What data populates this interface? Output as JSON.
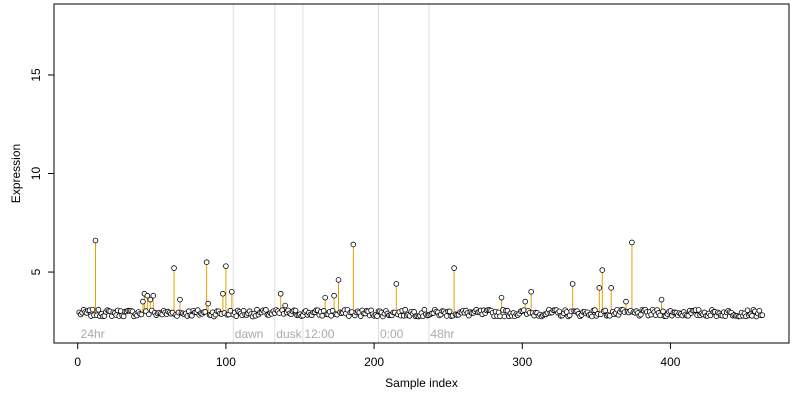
{
  "chart_data": {
    "type": "scatter",
    "title": "",
    "xlabel": "Sample index",
    "ylabel": "Expression",
    "xlim": [
      -16,
      480
    ],
    "ylim": [
      1.4,
      18.6
    ],
    "xticks": [
      0,
      100,
      200,
      300,
      400
    ],
    "yticks": [
      5,
      10,
      15
    ],
    "grid": false,
    "legend": "none",
    "colors": {
      "points_stroke": "#000000",
      "stems": "#E69F00",
      "sections": "#dddddd",
      "section_text": "#aaaaaa",
      "frame": "#000000"
    },
    "baseline": 2.9,
    "n_points": 462,
    "sections": [
      {
        "label": "24hr",
        "start": 2,
        "boundary": null
      },
      {
        "label": "dawn",
        "start": 106,
        "boundary": 105
      },
      {
        "label": "dusk",
        "start": 134,
        "boundary": 133
      },
      {
        "label": "12:00",
        "start": 153,
        "boundary": 152
      },
      {
        "label": "0:00",
        "start": 204,
        "boundary": 203
      },
      {
        "label": "48hr",
        "start": 238,
        "boundary": 237
      }
    ],
    "highlighted": [
      {
        "x": 12,
        "y": 6.6
      },
      {
        "x": 44,
        "y": 3.5
      },
      {
        "x": 45,
        "y": 3.9
      },
      {
        "x": 47,
        "y": 3.8
      },
      {
        "x": 49,
        "y": 3.6
      },
      {
        "x": 51,
        "y": 3.8
      },
      {
        "x": 65,
        "y": 5.2
      },
      {
        "x": 69,
        "y": 3.6
      },
      {
        "x": 87,
        "y": 5.5
      },
      {
        "x": 88,
        "y": 3.4
      },
      {
        "x": 98,
        "y": 3.9
      },
      {
        "x": 100,
        "y": 5.3
      },
      {
        "x": 104,
        "y": 4.0
      },
      {
        "x": 137,
        "y": 3.9
      },
      {
        "x": 140,
        "y": 3.3
      },
      {
        "x": 167,
        "y": 3.7
      },
      {
        "x": 173,
        "y": 3.8
      },
      {
        "x": 176,
        "y": 4.6
      },
      {
        "x": 186,
        "y": 6.4
      },
      {
        "x": 215,
        "y": 4.4
      },
      {
        "x": 254,
        "y": 5.2
      },
      {
        "x": 286,
        "y": 3.7
      },
      {
        "x": 302,
        "y": 3.5
      },
      {
        "x": 306,
        "y": 4.0
      },
      {
        "x": 334,
        "y": 4.4
      },
      {
        "x": 352,
        "y": 4.2
      },
      {
        "x": 354,
        "y": 5.1
      },
      {
        "x": 360,
        "y": 4.2
      },
      {
        "x": 370,
        "y": 3.5
      },
      {
        "x": 374,
        "y": 6.5
      },
      {
        "x": 394,
        "y": 3.6
      }
    ]
  }
}
